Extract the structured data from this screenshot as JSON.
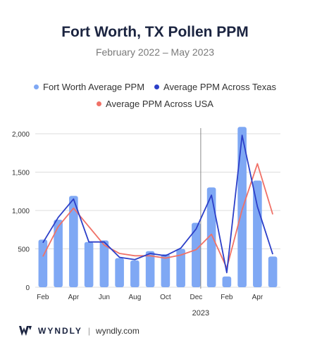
{
  "header": {
    "title": "Fort Worth, TX Pollen PPM",
    "subtitle": "February 2022 – May 2023"
  },
  "footer": {
    "brand": "WYNDLY",
    "separator": "|",
    "url": "wyndly.com"
  },
  "colors": {
    "bar": "#7fa8f4",
    "texas_line": "#2c3fc8",
    "usa_line": "#f07167",
    "grid": "#dddddd",
    "axis_text": "#333333",
    "divider": "#888888"
  },
  "chart_data": {
    "type": "bar",
    "title": "Fort Worth, TX Pollen PPM",
    "subtitle": "February 2022 – May 2023",
    "categories": [
      "Feb 2022",
      "Mar 2022",
      "Apr 2022",
      "May 2022",
      "Jun 2022",
      "Jul 2022",
      "Aug 2022",
      "Sep 2022",
      "Oct 2022",
      "Nov 2022",
      "Dec 2022",
      "Jan 2023",
      "Feb 2023",
      "Mar 2023",
      "Apr 2023",
      "May 2023"
    ],
    "x_tick_labels": [
      "Feb",
      "",
      "Apr",
      "",
      "Jun",
      "",
      "Aug",
      "",
      "Oct",
      "",
      "Dec",
      "",
      "Feb",
      "",
      "Apr",
      ""
    ],
    "year_label": "2023",
    "year_divider_after_index": 10,
    "series": [
      {
        "name": "Fort Worth Average PPM",
        "kind": "bar",
        "values": [
          620,
          880,
          1190,
          590,
          610,
          380,
          350,
          470,
          430,
          500,
          840,
          1300,
          140,
          2090,
          1390,
          400
        ]
      },
      {
        "name": "Average PPM Across Texas",
        "kind": "line",
        "values": [
          580,
          910,
          1150,
          590,
          590,
          390,
          360,
          440,
          410,
          510,
          760,
          1200,
          190,
          1980,
          1050,
          430
        ]
      },
      {
        "name": "Average PPM Across USA",
        "kind": "line",
        "values": [
          400,
          790,
          1030,
          790,
          550,
          440,
          410,
          410,
          380,
          420,
          490,
          690,
          250,
          1010,
          1610,
          950
        ]
      }
    ],
    "ylim": [
      0,
      2000
    ],
    "yticks": [
      0,
      500,
      1000,
      1500,
      2000
    ],
    "ytick_labels": [
      "0",
      "500",
      "1,000",
      "1,500",
      "2,000"
    ],
    "grid": true,
    "legend_position": "top"
  }
}
